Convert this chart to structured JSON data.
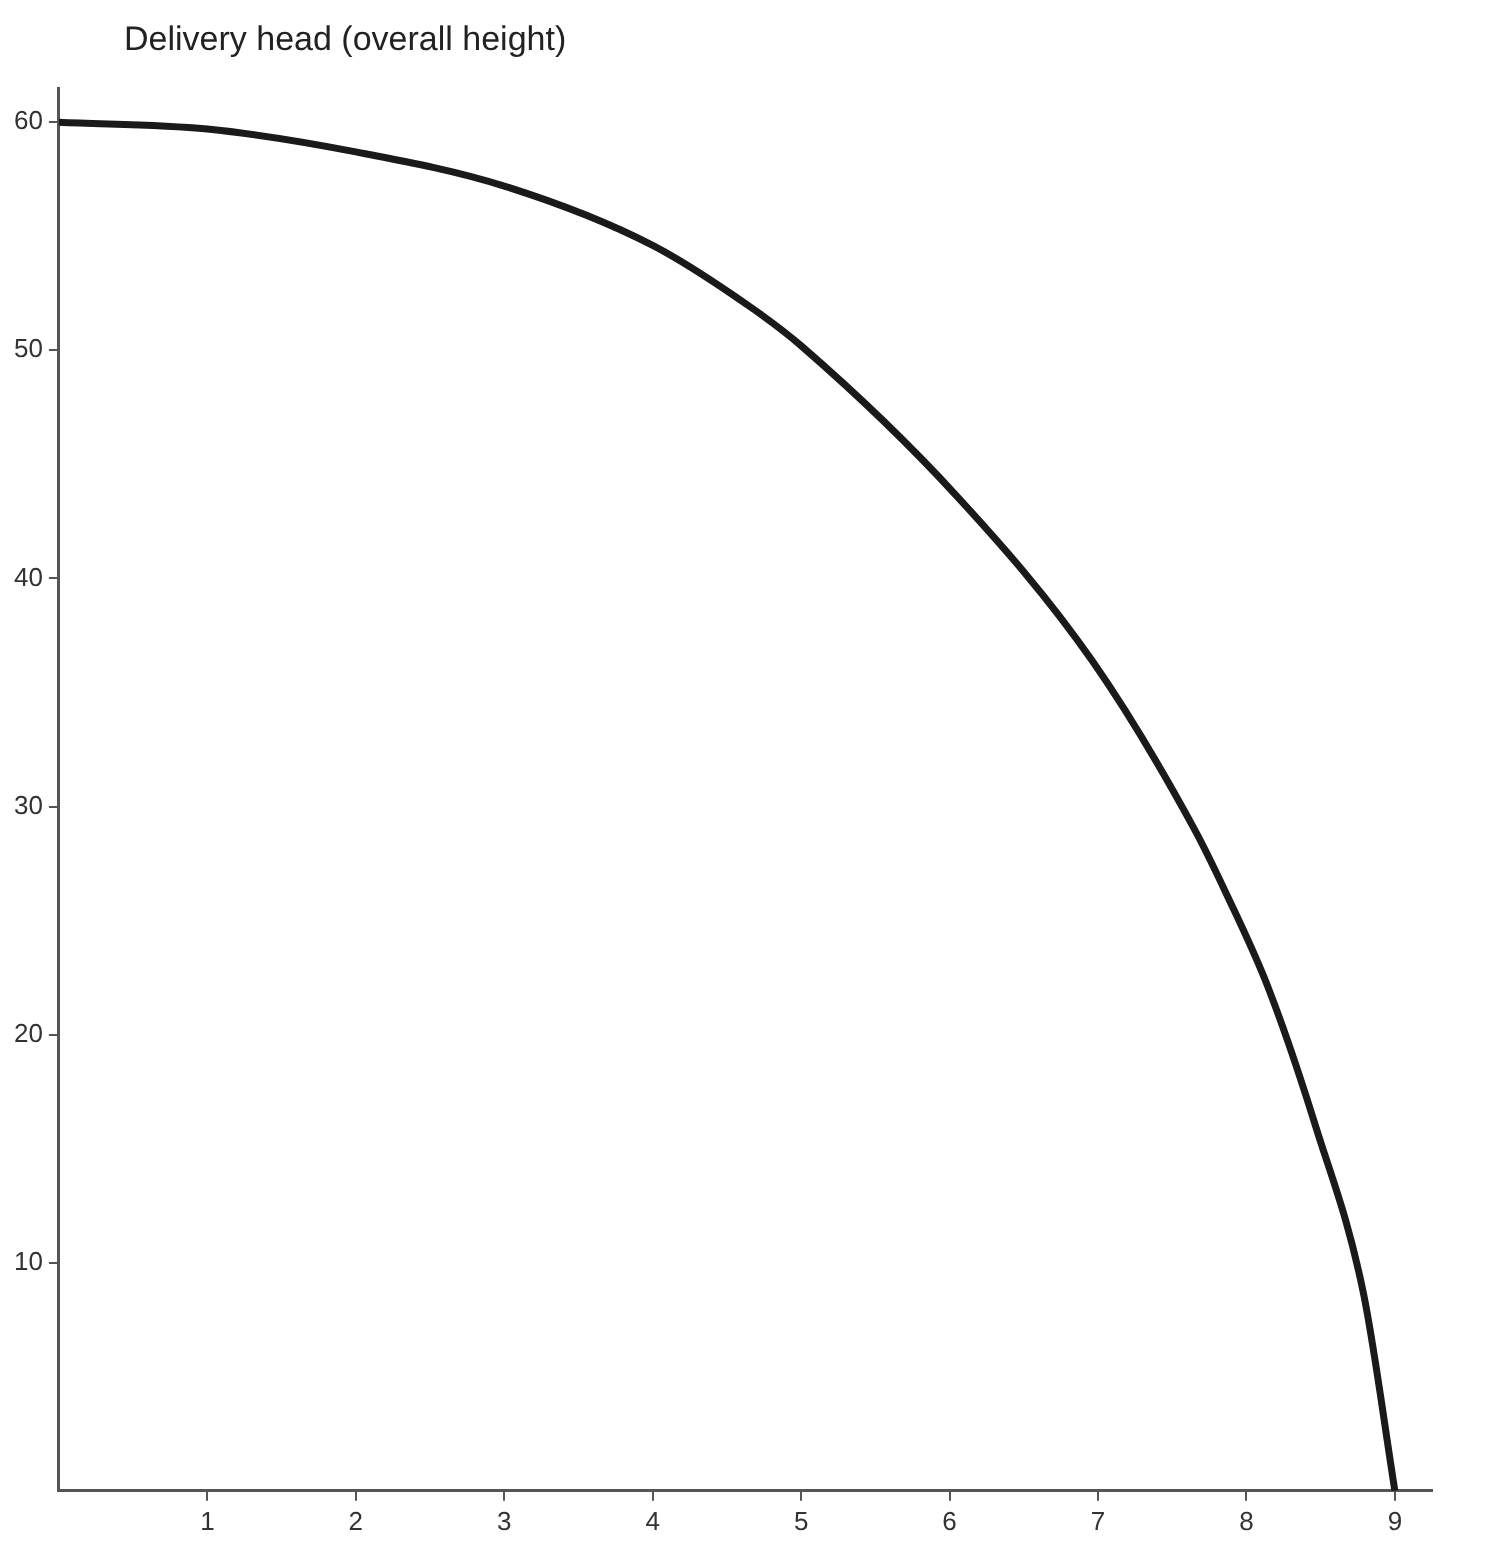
{
  "chart_data": {
    "type": "line",
    "title": "Delivery head (overall height)",
    "x": [
      0,
      1,
      2,
      3,
      4,
      4.68,
      5,
      6.05,
      6.96,
      7.65,
      7.87,
      8.15,
      8.47,
      8.79,
      9
    ],
    "series": [
      {
        "color": "#1a1a1a",
        "values": [
          60,
          59.7,
          58.7,
          57.2,
          54.6,
          51.8,
          50.2,
          43.6,
          36.4,
          29.0,
          26.1,
          22.0,
          15.9,
          8.6,
          0
        ]
      }
    ],
    "xlim": [
      0,
      9.25
    ],
    "xticks": [
      1,
      2,
      3,
      4,
      5,
      6,
      7,
      8,
      9
    ],
    "ylim": [
      0,
      61.5
    ],
    "yticks": [
      10,
      20,
      30,
      40,
      50,
      60
    ],
    "grid": false,
    "legend": false,
    "marker": "none",
    "line_style": "solid"
  }
}
